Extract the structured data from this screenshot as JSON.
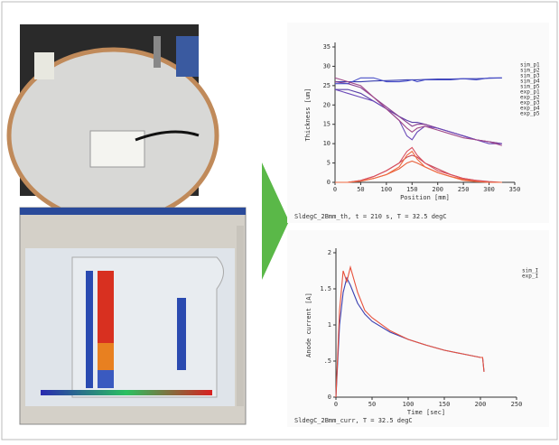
{
  "chart_data": [
    {
      "type": "line",
      "x_label": "Position [mm]",
      "y_label": "Thickness [um]",
      "caption": "SldegC_2Bmm_th, t = 210 s, T = 32.5 degC",
      "xlim": [
        0,
        350
      ],
      "ylim": [
        0,
        35
      ],
      "xticks": [
        0,
        50,
        100,
        150,
        200,
        250,
        300,
        350
      ],
      "yticks": [
        0,
        5,
        10,
        15,
        20,
        25,
        30,
        35
      ],
      "x": [
        0,
        25,
        50,
        75,
        100,
        125,
        140,
        150,
        160,
        175,
        200,
        225,
        250,
        275,
        300,
        325
      ],
      "series": [
        {
          "name": "sim_p1",
          "color": "#3a3fb0",
          "values": [
            26,
            26,
            26,
            26.2,
            26.3,
            26.4,
            26.5,
            26.5,
            26.5,
            26.6,
            26.7,
            26.7,
            26.8,
            26.8,
            26.9,
            27
          ]
        },
        {
          "name": "sim_p2",
          "color": "#5a3fa8",
          "values": [
            24,
            24,
            23,
            21,
            19,
            17,
            16,
            15.5,
            15.5,
            15,
            14,
            13,
            12,
            11,
            10.5,
            10
          ]
        },
        {
          "name": "sim_p3",
          "color": "#8a3f90",
          "values": [
            26,
            25.5,
            24.5,
            22,
            19.5,
            17,
            15.5,
            14.5,
            15,
            15,
            14,
            13,
            12,
            11,
            10.5,
            10
          ]
        },
        {
          "name": "sim_p4",
          "color": "#c84a5a",
          "values": [
            0,
            0,
            0.5,
            1.5,
            3,
            5,
            6.5,
            7,
            6.5,
            5,
            3.5,
            2,
            1,
            0.5,
            0.2,
            0
          ]
        },
        {
          "name": "sim_p5",
          "color": "#e8603a",
          "values": [
            0,
            0,
            0.3,
            1,
            2,
            3.5,
            5,
            5.5,
            5,
            4,
            2.5,
            1.5,
            0.8,
            0.3,
            0,
            0
          ]
        },
        {
          "name": "exp_p1",
          "color": "#4a50c8",
          "values": [
            25.5,
            25.5,
            27,
            27,
            26,
            26,
            26.2,
            26.5,
            26,
            26.5,
            26.5,
            26.5,
            26.8,
            26.5,
            27,
            27
          ]
        },
        {
          "name": "exp_p2",
          "color": "#6a48b8",
          "values": [
            24,
            23,
            22,
            21,
            19,
            16,
            12,
            11,
            13,
            14.5,
            14,
            13,
            12,
            11,
            10,
            10
          ]
        },
        {
          "name": "exp_p3",
          "color": "#a04888",
          "values": [
            27,
            26,
            25,
            22,
            19,
            16,
            14,
            13,
            14,
            14.5,
            13.5,
            12.5,
            11.5,
            11,
            10.5,
            9.5
          ]
        },
        {
          "name": "exp_p4",
          "color": "#d85060",
          "values": [
            0,
            0,
            0.5,
            1.5,
            3,
            5,
            8,
            9,
            7,
            5,
            3,
            2,
            1,
            0.5,
            0,
            0
          ]
        },
        {
          "name": "exp_p5",
          "color": "#f06a40",
          "values": [
            0,
            0,
            0.3,
            1,
            2,
            4,
            7,
            8,
            6,
            4,
            2.5,
            1.5,
            0.5,
            0.2,
            0,
            0
          ]
        }
      ]
    },
    {
      "type": "line",
      "x_label": "Time [sec]",
      "y_label": "Anode current [A]",
      "caption": "SldegC_2Bmm_curr, T = 32.5 degC",
      "xlim": [
        0,
        250
      ],
      "ylim": [
        0,
        2
      ],
      "xticks": [
        0,
        50,
        100,
        150,
        200,
        250
      ],
      "yticks": [
        0,
        {
          "value": 0.5,
          "label": ".5"
        },
        1,
        1.5,
        2
      ],
      "x": [
        0,
        5,
        10,
        15,
        20,
        30,
        40,
        50,
        75,
        100,
        125,
        150,
        175,
        200,
        203,
        205
      ],
      "series": [
        {
          "name": "sim_I",
          "color": "#3a3fb0",
          "values": [
            0,
            1,
            1.45,
            1.65,
            1.55,
            1.3,
            1.15,
            1.05,
            0.9,
            0.8,
            0.72,
            0.65,
            0.6,
            0.55,
            0.55,
            0.35
          ]
        },
        {
          "name": "exp_I",
          "color": "#e8503a",
          "values": [
            0,
            1.2,
            1.75,
            1.6,
            1.8,
            1.45,
            1.2,
            1.1,
            0.92,
            0.8,
            0.72,
            0.65,
            0.6,
            0.55,
            0.55,
            0.35
          ]
        }
      ]
    }
  ]
}
